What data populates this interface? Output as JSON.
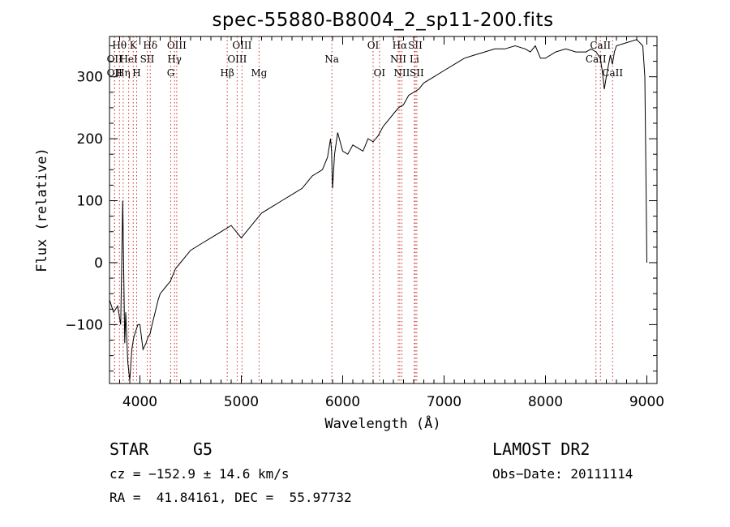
{
  "chart_data": {
    "type": "line",
    "title": "spec-55880-B8004_2_sp11-200.fits",
    "xlabel": "Wavelength (Å)",
    "ylabel": "Flux (relative)",
    "xlim": [
      3700,
      9100
    ],
    "ylim": [
      -195,
      365
    ],
    "x_ticks": [
      4000,
      5000,
      6000,
      7000,
      8000,
      9000
    ],
    "y_ticks": [
      -100,
      0,
      100,
      200,
      300
    ],
    "grid": false,
    "line_color": "#000000",
    "marker_color": "#cc3333",
    "series": [
      {
        "x": [
          3700,
          3740,
          3780,
          3810,
          3830,
          3850,
          3860,
          3880,
          3900,
          3920,
          3940,
          3960,
          3980,
          4000,
          4030,
          4060,
          4080,
          4100,
          4120,
          4150,
          4180,
          4200,
          4250,
          4300,
          4350,
          4400,
          4450,
          4500,
          4600,
          4700,
          4800,
          4900,
          5000,
          5100,
          5200,
          5300,
          5400,
          5500,
          5600,
          5700,
          5800,
          5850,
          5880,
          5890,
          5900,
          5920,
          5950,
          6000,
          6050,
          6100,
          6150,
          6200,
          6250,
          6300,
          6350,
          6400,
          6450,
          6500,
          6550,
          6600,
          6650,
          6700,
          6750,
          6800,
          6900,
          7000,
          7100,
          7200,
          7300,
          7400,
          7500,
          7600,
          7700,
          7800,
          7850,
          7900,
          7950,
          8000,
          8100,
          8200,
          8300,
          8400,
          8450,
          8500,
          8540,
          8560,
          8580,
          8600,
          8640,
          8660,
          8680,
          8700,
          8800,
          8900,
          8960,
          8980,
          8990,
          9000
        ],
        "y": [
          -60,
          -80,
          -70,
          -100,
          100,
          -130,
          -80,
          -160,
          -190,
          -140,
          -120,
          -110,
          -100,
          -100,
          -140,
          -130,
          -120,
          -115,
          -100,
          -80,
          -60,
          -50,
          -40,
          -30,
          -10,
          0,
          10,
          20,
          30,
          40,
          50,
          60,
          40,
          60,
          80,
          90,
          100,
          110,
          120,
          140,
          150,
          170,
          200,
          180,
          120,
          175,
          210,
          180,
          175,
          190,
          185,
          180,
          200,
          195,
          205,
          220,
          230,
          240,
          250,
          255,
          270,
          275,
          280,
          290,
          300,
          310,
          320,
          330,
          335,
          340,
          345,
          345,
          350,
          345,
          340,
          350,
          330,
          330,
          340,
          345,
          340,
          340,
          345,
          340,
          330,
          310,
          280,
          300,
          335,
          320,
          340,
          350,
          355,
          360,
          350,
          300,
          150,
          0
        ]
      }
    ],
    "spectral_lines": [
      {
        "x": 3750,
        "label": "OII",
        "row": 2
      },
      {
        "x": 3750,
        "label": "OII",
        "row": 3
      },
      {
        "x": 3798,
        "label": "Hθ",
        "row": 1
      },
      {
        "x": 3835,
        "label": "Hη",
        "row": 3
      },
      {
        "x": 3889,
        "label": "HeI",
        "row": 2
      },
      {
        "x": 3934,
        "label": "K",
        "row": 1
      },
      {
        "x": 3968,
        "label": "H",
        "row": 3
      },
      {
        "x": 4072,
        "label": "SII",
        "row": 2
      },
      {
        "x": 4102,
        "label": "Hδ",
        "row": 1
      },
      {
        "x": 4304,
        "label": "G",
        "row": 3
      },
      {
        "x": 4341,
        "label": "Hγ",
        "row": 2
      },
      {
        "x": 4363,
        "label": "OIII",
        "row": 1
      },
      {
        "x": 4861,
        "label": "Hβ",
        "row": 3
      },
      {
        "x": 4959,
        "label": "OIII",
        "row": 2
      },
      {
        "x": 5007,
        "label": "OIII",
        "row": 1
      },
      {
        "x": 5175,
        "label": "Mg",
        "row": 3
      },
      {
        "x": 5893,
        "label": "Na",
        "row": 2
      },
      {
        "x": 6300,
        "label": "OI",
        "row": 1
      },
      {
        "x": 6363,
        "label": "OI",
        "row": 3
      },
      {
        "x": 6548,
        "label": "NII",
        "row": 2
      },
      {
        "x": 6563,
        "label": "Hα",
        "row": 1
      },
      {
        "x": 6583,
        "label": "NII",
        "row": 3
      },
      {
        "x": 6707,
        "label": "Li",
        "row": 2
      },
      {
        "x": 6716,
        "label": "SII",
        "row": 1
      },
      {
        "x": 6731,
        "label": "SII",
        "row": 3
      },
      {
        "x": 8498,
        "label": "CaII",
        "row": 2
      },
      {
        "x": 8542,
        "label": "CaII",
        "row": 1
      },
      {
        "x": 8662,
        "label": "CaII",
        "row": 3
      }
    ]
  },
  "info": {
    "object_class": "STAR",
    "subclass": "G5",
    "survey": "LAMOST DR2",
    "redshift": "cz = −152.9 ± 14.6 km/s",
    "obs_date": "Obs−Date: 20111114",
    "coordinates": "RA =  41.84161, DEC =  55.97732"
  }
}
